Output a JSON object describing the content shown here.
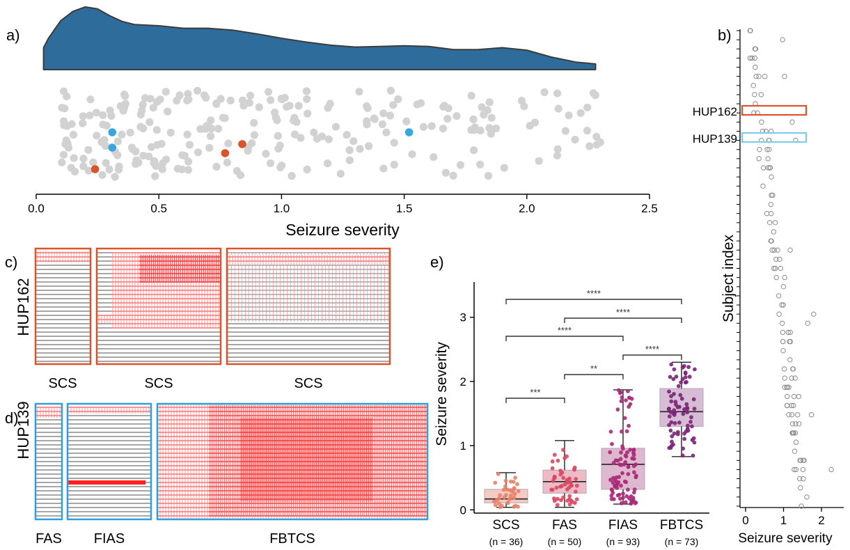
{
  "panel_labels": {
    "a": "a)",
    "b": "b)",
    "c": "c)",
    "d": "d)",
    "e": "e)"
  },
  "colors": {
    "density": "#2e6c9c",
    "gray_point": "#d2d2d2",
    "red": "#d9532b",
    "blue": "#3aa6dc",
    "blue_box": "#7fcbea",
    "trace_red": "#ff0000",
    "trace_black": "#333333",
    "open_point": "#8c8c8c"
  },
  "chart_data": [
    {
      "id": "a",
      "type": "scatter",
      "description_kind": "density-plus-strip",
      "xlabel": "Seizure severity",
      "xlim": [
        0,
        2.5
      ],
      "xticks": [
        0.0,
        0.5,
        1.0,
        1.5,
        2.0,
        2.5
      ],
      "xtick_labels": [
        "0.0",
        "0.5",
        "1.0",
        "1.5",
        "2.0",
        "2.5"
      ],
      "density_curve": {
        "x": [
          0.03,
          0.05,
          0.1,
          0.15,
          0.2,
          0.25,
          0.3,
          0.35,
          0.4,
          0.5,
          0.6,
          0.7,
          0.8,
          0.9,
          1.0,
          1.1,
          1.2,
          1.3,
          1.4,
          1.5,
          1.6,
          1.7,
          1.8,
          1.9,
          2.0,
          2.1,
          2.2,
          2.28
        ],
        "y": [
          0.35,
          0.5,
          0.78,
          0.93,
          1.0,
          0.97,
          0.86,
          0.77,
          0.72,
          0.7,
          0.66,
          0.66,
          0.63,
          0.57,
          0.5,
          0.44,
          0.39,
          0.36,
          0.37,
          0.38,
          0.37,
          0.32,
          0.32,
          0.35,
          0.31,
          0.2,
          0.12,
          0.09
        ]
      },
      "hup162_points": [
        0.24,
        0.77,
        0.84
      ],
      "hup139_points": [
        0.31,
        0.31,
        1.52
      ]
    },
    {
      "id": "b",
      "type": "scatter",
      "xlabel": "Seizure severity",
      "ylabel": "Subject index",
      "xticks": [
        0,
        1,
        2
      ],
      "xtick_labels": [
        "0",
        "1",
        "2"
      ],
      "xlim": [
        -0.05,
        2.4
      ],
      "subject_count": 53,
      "highlight_rows": [
        {
          "label": "HUP162",
          "row": 7
        },
        {
          "label": "HUP139",
          "row": 9
        }
      ]
    },
    {
      "id": "e",
      "type": "bar",
      "description_kind": "box-plus-strip",
      "ylabel": "Seizure severity",
      "yticks": [
        0,
        1,
        2,
        3
      ],
      "ylim": [
        -0.05,
        3.55
      ],
      "categories": [
        "SCS",
        "FAS",
        "FIAS",
        "FBTCS"
      ],
      "counts": [
        "(n = 36)",
        "(n = 50)",
        "(n = 93)",
        "(n = 73)"
      ],
      "box_stats": [
        {
          "name": "SCS",
          "whisker_low": 0.04,
          "q1": 0.11,
          "median": 0.17,
          "q3": 0.32,
          "whisker_high": 0.58,
          "color": "#e8826a",
          "box_color": "#f3cbc2"
        },
        {
          "name": "FAS",
          "whisker_low": 0.04,
          "q1": 0.26,
          "median": 0.44,
          "q3": 0.62,
          "whisker_high": 1.08,
          "color": "#d94863",
          "box_color": "#ecbcc6"
        },
        {
          "name": "FIAS",
          "whisker_low": 0.09,
          "q1": 0.32,
          "median": 0.71,
          "q3": 0.96,
          "whisker_high": 1.87,
          "color": "#a82a76",
          "box_color": "#deb8cf"
        },
        {
          "name": "FBTCS",
          "whisker_low": 0.83,
          "q1": 1.3,
          "median": 1.53,
          "q3": 1.89,
          "whisker_high": 2.3,
          "color": "#7a2575",
          "box_color": "#d7bcd5"
        }
      ],
      "significance": [
        {
          "from": "SCS",
          "to": "FAS",
          "label": "***",
          "y": 2.17
        },
        {
          "from": "FAS",
          "to": "FIAS",
          "label": "**",
          "y": 2.73
        },
        {
          "from": "FIAS",
          "to": "FBTCS",
          "label": "****",
          "y": 3.29
        },
        {
          "from": "SCS",
          "to": "FIAS",
          "label": "****",
          "y": 3.92
        },
        {
          "from": "FAS",
          "to": "FBTCS",
          "label": "****",
          "y": 4.36
        },
        {
          "from": "SCS",
          "to": "FBTCS",
          "label": "****",
          "y": 4.67
        }
      ]
    }
  ],
  "panel_b_labels": {
    "hup162": "HUP162",
    "hup139": "HUP139"
  },
  "panel_c": {
    "subject": "HUP162",
    "seizure_labels": [
      "SCS",
      "SCS",
      "SCS"
    ]
  },
  "panel_d": {
    "subject": "HUP139",
    "seizure_labels": [
      "FAS",
      "FIAS",
      "FBTCS"
    ]
  }
}
